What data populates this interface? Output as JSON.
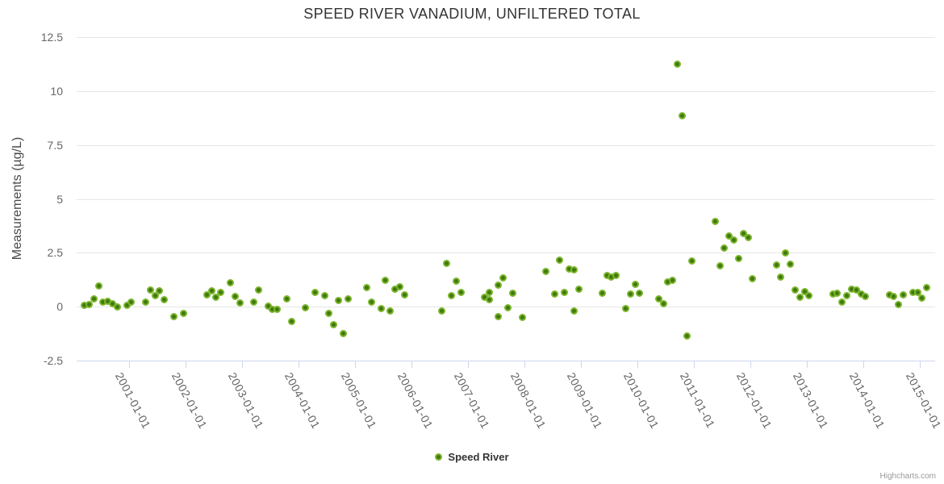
{
  "credits": {
    "label": "Highcharts.com"
  },
  "colors": {
    "title_text": "#333333",
    "axis_label_text": "#666666",
    "grid_line": "#e6e6e6",
    "axis_line": "#ccd6eb",
    "marker_ring": "#7cb42c",
    "marker_center": "#3e7a0e"
  },
  "chart_data": {
    "type": "scatter",
    "title": "SPEED RIVER VANADIUM, UNFILTERED TOTAL",
    "xlabel": "",
    "ylabel": "Measurements (µg/L)",
    "ylim": [
      -2.5,
      12.5
    ],
    "yticks": [
      -2.5,
      0,
      2.5,
      5,
      7.5,
      10,
      12.5
    ],
    "ytick_labels": [
      "-2.5",
      "0",
      "2.5",
      "5",
      "7.5",
      "10",
      "12.5"
    ],
    "xtick_labels": [
      "2001-01-01",
      "2002-01-01",
      "2003-01-01",
      "2004-01-01",
      "2005-01-01",
      "2006-01-01",
      "2007-01-01",
      "2008-01-01",
      "2009-01-01",
      "2010-01-01",
      "2011-01-01",
      "2012-01-01",
      "2013-01-01",
      "2014-01-01",
      "2015-01-01"
    ],
    "grid": "horizontal-only",
    "legend": {
      "position": "bottom-center",
      "items": [
        {
          "label": "Speed River",
          "color": "#7cb42c"
        }
      ]
    },
    "series": [
      {
        "name": "Speed River",
        "data": [
          [
            "2000-03",
            0.05
          ],
          [
            "2000-04",
            0.1
          ],
          [
            "2000-05",
            0.38
          ],
          [
            "2000-06",
            0.95
          ],
          [
            "2000-07",
            0.2
          ],
          [
            "2000-08",
            0.26
          ],
          [
            "2000-09",
            0.15
          ],
          [
            "2000-10",
            -0.02
          ],
          [
            "2000-12",
            0.08
          ],
          [
            "2001-01",
            0.2
          ],
          [
            "2001-04",
            0.22
          ],
          [
            "2001-05",
            0.78
          ],
          [
            "2001-06",
            0.5
          ],
          [
            "2001-07",
            0.75
          ],
          [
            "2001-08",
            0.32
          ],
          [
            "2001-10",
            -0.45
          ],
          [
            "2001-12",
            -0.3
          ],
          [
            "2002-05",
            0.55
          ],
          [
            "2002-06",
            0.75
          ],
          [
            "2002-07",
            0.45
          ],
          [
            "2002-08",
            0.68
          ],
          [
            "2002-10",
            1.13
          ],
          [
            "2002-11",
            0.46
          ],
          [
            "2002-12",
            0.17
          ],
          [
            "2003-03",
            0.2
          ],
          [
            "2003-04",
            0.76
          ],
          [
            "2003-06",
            0.02
          ],
          [
            "2003-07",
            -0.12
          ],
          [
            "2003-08",
            -0.12
          ],
          [
            "2003-10",
            0.36
          ],
          [
            "2003-11",
            -0.69
          ],
          [
            "2004-02",
            -0.03
          ],
          [
            "2004-04",
            0.67
          ],
          [
            "2004-06",
            0.51
          ],
          [
            "2004-07",
            -0.3
          ],
          [
            "2004-08",
            -0.82
          ],
          [
            "2004-09",
            0.3
          ],
          [
            "2004-10",
            -1.26
          ],
          [
            "2004-11",
            0.36
          ],
          [
            "2005-03",
            0.88
          ],
          [
            "2005-04",
            0.23
          ],
          [
            "2005-06",
            -0.08
          ],
          [
            "2005-07",
            1.24
          ],
          [
            "2005-08",
            -0.19
          ],
          [
            "2005-09",
            0.8
          ],
          [
            "2005-10",
            0.92
          ],
          [
            "2005-11",
            0.56
          ],
          [
            "2006-07",
            -0.19
          ],
          [
            "2006-08",
            2.0
          ],
          [
            "2006-09",
            0.5
          ],
          [
            "2006-10",
            1.17
          ],
          [
            "2006-11",
            0.68
          ],
          [
            "2007-04",
            0.44
          ],
          [
            "2007-05",
            0.31
          ],
          [
            "2007-05",
            0.66
          ],
          [
            "2007-07",
            -0.45
          ],
          [
            "2007-07",
            1.0
          ],
          [
            "2007-08",
            1.34
          ],
          [
            "2007-09",
            -0.03
          ],
          [
            "2007-10",
            0.62
          ],
          [
            "2007-12",
            -0.5
          ],
          [
            "2008-05",
            1.64
          ],
          [
            "2008-07",
            0.58
          ],
          [
            "2008-08",
            2.17
          ],
          [
            "2008-09",
            0.67
          ],
          [
            "2008-10",
            1.74
          ],
          [
            "2008-11",
            1.7
          ],
          [
            "2008-11",
            -0.2
          ],
          [
            "2008-12",
            0.83
          ],
          [
            "2009-05",
            0.62
          ],
          [
            "2009-06",
            1.45
          ],
          [
            "2009-07",
            1.36
          ],
          [
            "2009-08",
            1.45
          ],
          [
            "2009-10",
            -0.1
          ],
          [
            "2009-11",
            0.58
          ],
          [
            "2009-12",
            1.03
          ],
          [
            "2010-01",
            0.62
          ],
          [
            "2010-05",
            0.35
          ],
          [
            "2010-06",
            0.15
          ],
          [
            "2010-07",
            1.15
          ],
          [
            "2010-08",
            1.23
          ],
          [
            "2010-09",
            11.25
          ],
          [
            "2010-10",
            8.85
          ],
          [
            "2010-11",
            -1.35
          ],
          [
            "2010-12",
            2.14
          ],
          [
            "2011-05",
            3.95
          ],
          [
            "2011-06",
            1.89
          ],
          [
            "2011-07",
            2.72
          ],
          [
            "2011-08",
            3.28
          ],
          [
            "2011-09",
            3.1
          ],
          [
            "2011-10",
            2.23
          ],
          [
            "2011-11",
            3.41
          ],
          [
            "2011-12",
            3.22
          ],
          [
            "2012-01",
            1.31
          ],
          [
            "2012-06",
            1.95
          ],
          [
            "2012-07",
            1.36
          ],
          [
            "2012-08",
            2.49
          ],
          [
            "2012-09",
            1.97
          ],
          [
            "2012-10",
            0.78
          ],
          [
            "2012-11",
            0.45
          ],
          [
            "2012-12",
            0.72
          ],
          [
            "2013-01",
            0.51
          ],
          [
            "2013-06",
            0.6
          ],
          [
            "2013-07",
            0.63
          ],
          [
            "2013-08",
            0.22
          ],
          [
            "2013-09",
            0.53
          ],
          [
            "2013-10",
            0.81
          ],
          [
            "2013-11",
            0.78
          ],
          [
            "2013-12",
            0.6
          ],
          [
            "2014-01",
            0.47
          ],
          [
            "2014-06",
            0.56
          ],
          [
            "2014-07",
            0.47
          ],
          [
            "2014-08",
            0.12
          ],
          [
            "2014-09",
            0.56
          ],
          [
            "2014-11",
            0.68
          ],
          [
            "2014-12",
            0.65
          ],
          [
            "2015-01",
            0.4
          ],
          [
            "2015-02",
            0.9
          ]
        ]
      }
    ]
  }
}
